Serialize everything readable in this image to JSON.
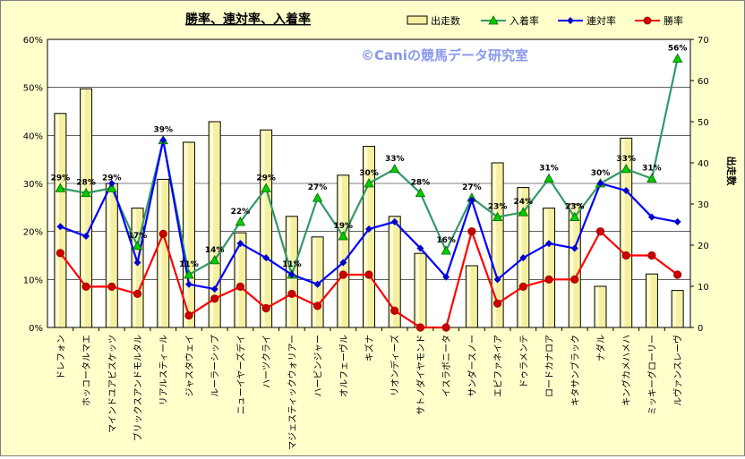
{
  "chart_data": {
    "type": "bar",
    "title": "勝率、連対率、入着率",
    "watermark": "©Caniの競馬データ研究室",
    "categories": [
      "ドレフォン",
      "ホッコータルマエ",
      "マインドユアビスケッツ",
      "ブリックスアンドモルタル",
      "リアルスティール",
      "ジャスタウェイ",
      "ルーラーシップ",
      "ニューイヤーズデイ",
      "ハーツクライ",
      "マジェスティックウォリアー",
      "ハービンジャー",
      "オルフェーヴル",
      "キズナ",
      "リオンディーズ",
      "サトノダイヤモンド",
      "イスラボニータ",
      "サンダースノー",
      "エピファネイア",
      "ドゥラメンテ",
      "ロードカナロア",
      "キタサンブラック",
      "ナダル",
      "キングカメハメハ",
      "ミッキーグローリー",
      "ルヴァンスレーヴ"
    ],
    "left_axis": {
      "ticks": [
        "0%",
        "10%",
        "20%",
        "30%",
        "40%",
        "50%",
        "60%"
      ],
      "min": 0,
      "max": 60
    },
    "right_axis": {
      "label": "出走数",
      "ticks": [
        "0",
        "10",
        "20",
        "30",
        "40",
        "50",
        "60",
        "70"
      ],
      "min": 0,
      "max": 70
    },
    "series": [
      {
        "name": "出走数",
        "kind": "bar",
        "axis": "right",
        "color": "#F5F0A0",
        "values": [
          52,
          58,
          35,
          29,
          36,
          45,
          50,
          23,
          48,
          27,
          22,
          37,
          44,
          27,
          18,
          0,
          15,
          40,
          34,
          29,
          30,
          10,
          46,
          13,
          9
        ]
      },
      {
        "name": "入着率",
        "kind": "line",
        "axis": "left",
        "color": "#339966",
        "marker": "triangle",
        "marker_color": "#00CC00",
        "values": [
          29,
          28,
          29,
          17,
          39,
          11,
          14,
          22,
          29,
          11,
          27,
          19,
          30,
          33,
          28,
          16,
          27,
          23,
          24,
          31,
          23,
          30,
          33,
          31,
          56
        ],
        "labels": [
          "29%",
          "28%",
          "29%",
          "17%",
          "39%",
          "11%",
          "14%",
          "22%",
          "29%",
          "11%",
          "27%",
          "19%",
          "30%",
          "33%",
          "28%",
          "16%",
          "27%",
          "23%",
          "24%",
          "31%",
          "23%",
          "30%",
          "33%",
          "31%",
          "56%"
        ]
      },
      {
        "name": "連対率",
        "kind": "line",
        "axis": "left",
        "color": "#0000FF",
        "marker": "diamond",
        "marker_color": "#0000CC",
        "values": [
          21,
          19,
          30,
          13.5,
          39,
          9,
          8,
          17.5,
          14.5,
          11,
          9,
          13.5,
          20.5,
          22,
          16.5,
          10.5,
          26.5,
          10,
          14.5,
          17.5,
          16.5,
          30,
          28.5,
          23,
          22
        ]
      },
      {
        "name": "勝率",
        "kind": "line",
        "axis": "left",
        "color": "#FF0000",
        "marker": "circle",
        "marker_color": "#CC0000",
        "values": [
          15.5,
          8.5,
          8.5,
          7,
          19.5,
          2.5,
          6,
          8.5,
          4,
          7,
          4.5,
          11,
          11,
          3.5,
          0,
          0,
          20,
          5,
          8.5,
          10,
          10,
          20,
          15,
          15,
          11
        ]
      }
    ],
    "legend_position": "top-right",
    "grid": true
  }
}
